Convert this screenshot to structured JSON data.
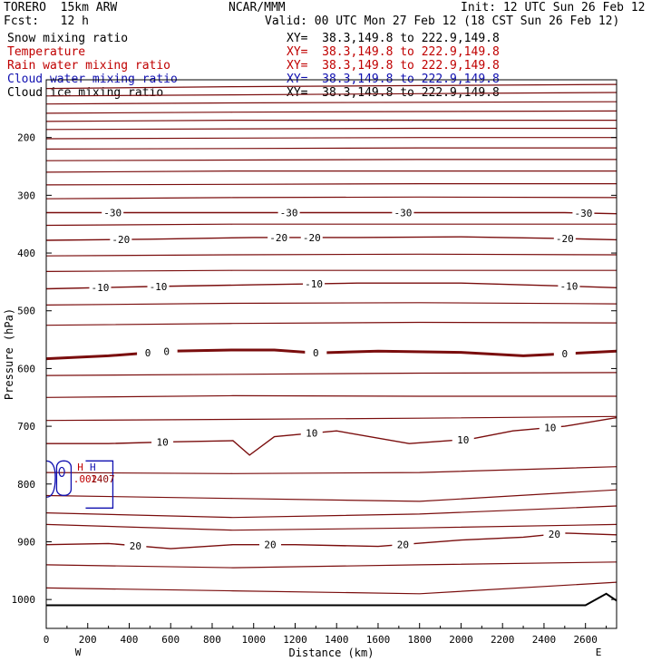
{
  "header": {
    "model": "TORERO  15km ARW",
    "org": "NCAR/MMM",
    "init": "Init: 12 UTC Sun 26 Feb 12",
    "fcst": "Fcst:   12 h",
    "valid": "Valid: 00 UTC Mon 27 Feb 12 (18 CST Sun 26 Feb 12)"
  },
  "fields": [
    {
      "name": "Snow mixing ratio",
      "xy": "XY=  38.3,149.8 to 222.9,149.8",
      "color": "#000000"
    },
    {
      "name": "Temperature",
      "xy": "XY=  38.3,149.8 to 222.9,149.8",
      "color": "#c00000"
    },
    {
      "name": "Rain water mixing ratio",
      "xy": "XY=  38.3,149.8 to 222.9,149.8",
      "color": "#c00000"
    },
    {
      "name": "Cloud water mixing ratio",
      "xy": "XY=  38.3,149.8 to 222.9,149.8",
      "color": "#1010b0"
    },
    {
      "name": "Cloud ice mixing ratio",
      "xy": "XY=  38.3,149.8 to 222.9,149.8",
      "color": "#000000"
    }
  ],
  "colors": {
    "temperature": "#7a0d0d",
    "cloud_water": "#1010b0",
    "rain": "#c00000",
    "terrain": "#000000"
  },
  "chart_data": {
    "type": "contour",
    "xlabel": "Distance (km)",
    "ylabel": "Pressure (hPa)",
    "xlim": [
      0,
      2750
    ],
    "ylim": [
      1050,
      100
    ],
    "x_ticks": [
      0,
      200,
      400,
      600,
      800,
      1000,
      1200,
      1400,
      1600,
      1800,
      2000,
      2200,
      2400,
      2600
    ],
    "y_ticks": [
      200,
      300,
      400,
      500,
      600,
      700,
      800,
      900,
      1000
    ],
    "x_end_labels": {
      "left": "W",
      "right": "E"
    },
    "temperature_isotherms": [
      {
        "level": -30,
        "x": [
          0,
          500,
          1000,
          1500,
          2000,
          2500,
          2750
        ],
        "p": [
          330,
          330,
          330,
          330,
          330,
          330,
          332
        ],
        "labels_x": [
          320,
          1170,
          1720,
          2590
        ]
      },
      {
        "level": -20,
        "x": [
          0,
          500,
          1000,
          1500,
          2000,
          2500,
          2750
        ],
        "p": [
          378,
          376,
          373,
          373,
          372,
          375,
          377
        ],
        "labels_x": [
          360,
          1120,
          1280,
          2500
        ]
      },
      {
        "level": -10,
        "x": [
          0,
          500,
          1000,
          1500,
          2000,
          2500,
          2750
        ],
        "p": [
          462,
          458,
          455,
          452,
          452,
          457,
          460
        ],
        "labels_x": [
          260,
          540,
          1290,
          2520
        ]
      },
      {
        "level": 0,
        "x": [
          0,
          300,
          600,
          900,
          1100,
          1300,
          1600,
          2000,
          2300,
          2750
        ],
        "p": [
          583,
          578,
          570,
          568,
          568,
          573,
          570,
          572,
          578,
          570
        ],
        "labels_x": [
          490,
          580,
          1300,
          2500
        ]
      },
      {
        "level": 10,
        "x": [
          0,
          300,
          600,
          900,
          980,
          1100,
          1400,
          1750,
          2050,
          2250,
          2500,
          2750
        ],
        "p": [
          730,
          730,
          727,
          725,
          750,
          718,
          708,
          730,
          722,
          708,
          700,
          685
        ],
        "labels_x": [
          560,
          1280,
          2010,
          2430
        ]
      },
      {
        "level": 20,
        "x": [
          0,
          300,
          600,
          900,
          1200,
          1600,
          2000,
          2300,
          2500,
          2750
        ],
        "p": [
          905,
          903,
          912,
          905,
          905,
          908,
          897,
          892,
          885,
          888
        ],
        "labels_x": [
          430,
          1080,
          1720,
          2450
        ]
      }
    ],
    "cloud_water_region": {
      "x_range": [
        0,
        380
      ],
      "p_range": [
        750,
        820
      ]
    },
    "rain_markers": [
      {
        "label": "H",
        "value": ".002"
      }
    ],
    "snow_markers": [
      {
        "label": "H",
        "value": "1407"
      }
    ]
  }
}
